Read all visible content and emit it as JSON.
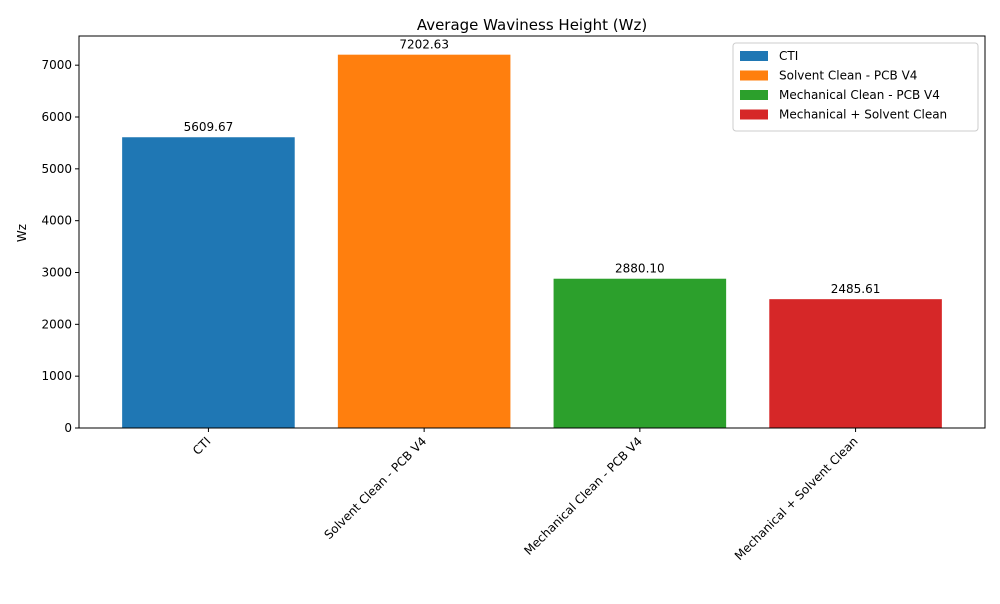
{
  "chart_data": {
    "type": "bar",
    "title": "Average Waviness Height (Wz)",
    "xlabel": "",
    "ylabel": "Wz",
    "categories": [
      "CTI",
      "Solvent Clean - PCB V4",
      "Mechanical Clean - PCB V4",
      "Mechanical + Solvent Clean"
    ],
    "values": [
      5609.67,
      7202.63,
      2880.1,
      2485.61
    ],
    "value_labels": [
      "5609.67",
      "7202.63",
      "2880.10",
      "2485.61"
    ],
    "colors": [
      "#1f77b4",
      "#ff7f0e",
      "#2ca02c",
      "#d62728"
    ],
    "ylim": [
      0,
      7563
    ],
    "yticks": [
      0,
      1000,
      2000,
      3000,
      4000,
      5000,
      6000,
      7000
    ],
    "ytick_labels": [
      "0",
      "1000",
      "2000",
      "3000",
      "4000",
      "5000",
      "6000",
      "7000"
    ],
    "legend": {
      "position": "top-right",
      "entries": [
        "CTI",
        "Solvent Clean - PCB V4",
        "Mechanical Clean - PCB V4",
        "Mechanical + Solvent Clean"
      ]
    },
    "grid": false
  }
}
